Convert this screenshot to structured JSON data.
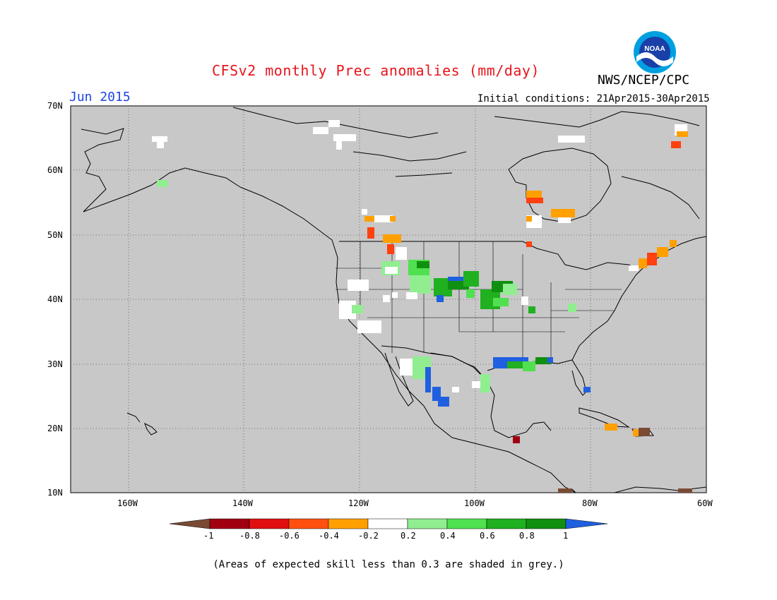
{
  "header": {
    "title": "CFSv2 monthly Prec anomalies (mm/day)",
    "brand": "NWS/NCEP/CPC",
    "logo_text": "NOAA",
    "period": "Jun 2015",
    "init_conditions": "Initial conditions: 21Apr2015-30Apr2015"
  },
  "map": {
    "lat_labels": [
      "70N",
      "60N",
      "50N",
      "40N",
      "30N",
      "20N",
      "10N"
    ],
    "lon_labels": [
      "160W",
      "140W",
      "120W",
      "100W",
      "80W",
      "60W"
    ],
    "background_color": "#c8c8c8",
    "coastline_color": "#000000"
  },
  "colorbar": {
    "labels": [
      "-1",
      "-0.8",
      "-0.6",
      "-0.4",
      "-0.2",
      "0.2",
      "0.4",
      "0.6",
      "0.8",
      "1"
    ],
    "colors": [
      "#7a4a35",
      "#a00010",
      "#e01010",
      "#ff5010",
      "#ffa000",
      "#ffffff",
      "#90ee90",
      "#50e050",
      "#20b020",
      "#109010",
      "#2060e0"
    ]
  },
  "footnote": "(Areas of expected skill less than 0.3 are shaded in grey.)"
}
